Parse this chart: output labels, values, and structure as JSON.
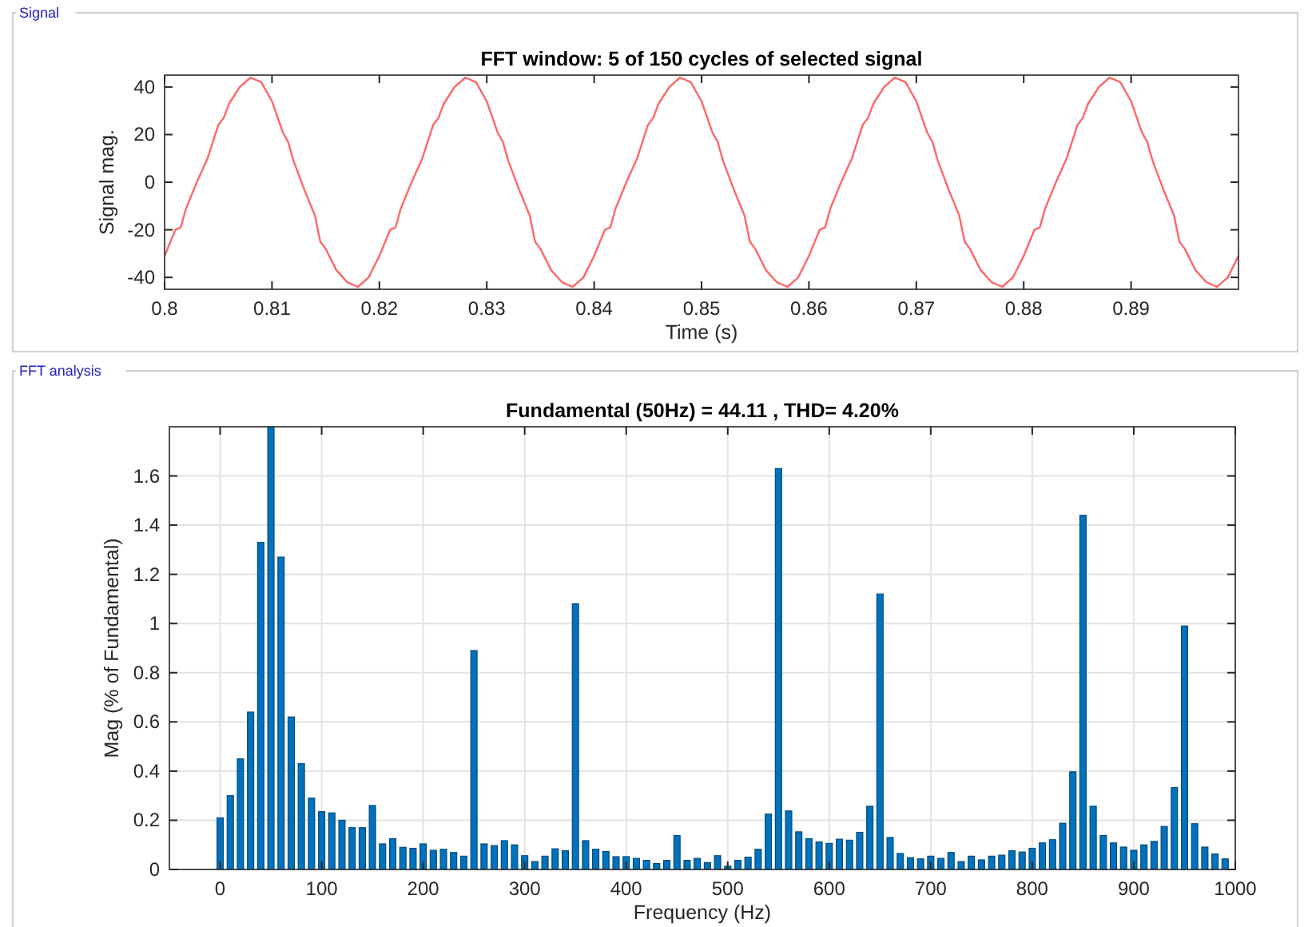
{
  "chart_data": [
    {
      "type": "line",
      "title": "FFT window: 5 of 150 cycles of selected signal",
      "xlabel": "Time (s)",
      "ylabel": "Signal mag.",
      "annotations": [
        "Signal"
      ],
      "color": "#ff6666",
      "x": [
        0.8,
        0.801,
        0.8015,
        0.802,
        0.803,
        0.804,
        0.8045,
        0.805,
        0.8055,
        0.806,
        0.807,
        0.808,
        0.809,
        0.81,
        0.811,
        0.8115,
        0.812,
        0.813,
        0.814,
        0.8145,
        0.815,
        0.816,
        0.817,
        0.818,
        0.819,
        0.82,
        0.821,
        0.8215,
        0.822,
        0.823,
        0.824,
        0.8245,
        0.825,
        0.8255,
        0.826,
        0.827,
        0.828,
        0.829,
        0.83,
        0.831,
        0.8315,
        0.832,
        0.833,
        0.834,
        0.8345,
        0.835,
        0.836,
        0.837,
        0.838,
        0.839,
        0.84,
        0.841,
        0.8415,
        0.842,
        0.843,
        0.844,
        0.8445,
        0.845,
        0.8455,
        0.846,
        0.847,
        0.848,
        0.849,
        0.85,
        0.851,
        0.8515,
        0.852,
        0.853,
        0.854,
        0.8545,
        0.855,
        0.856,
        0.857,
        0.858,
        0.859,
        0.86,
        0.861,
        0.8615,
        0.862,
        0.863,
        0.864,
        0.8645,
        0.865,
        0.8655,
        0.866,
        0.867,
        0.868,
        0.869,
        0.87,
        0.871,
        0.8715,
        0.872,
        0.873,
        0.874,
        0.8745,
        0.875,
        0.876,
        0.877,
        0.878,
        0.879,
        0.88,
        0.881,
        0.8815,
        0.882,
        0.883,
        0.884,
        0.8845,
        0.885,
        0.8855,
        0.886,
        0.887,
        0.888,
        0.889,
        0.89,
        0.891,
        0.8915,
        0.892,
        0.893,
        0.894,
        0.8945,
        0.895,
        0.896,
        0.897,
        0.898,
        0.899,
        0.9
      ],
      "values": [
        -31,
        -20,
        -19,
        -11,
        0,
        10,
        17,
        24,
        27,
        33,
        40,
        44,
        42,
        34,
        21,
        17,
        9,
        -3,
        -14,
        -25,
        -28,
        -37,
        -42,
        -44,
        -40,
        -31,
        -20,
        -19,
        -11,
        0,
        10,
        17,
        24,
        27,
        33,
        40,
        44,
        42,
        34,
        21,
        17,
        9,
        -3,
        -14,
        -25,
        -28,
        -37,
        -42,
        -44,
        -40,
        -31,
        -20,
        -19,
        -11,
        0,
        10,
        17,
        24,
        27,
        33,
        40,
        44,
        42,
        34,
        21,
        17,
        9,
        -3,
        -14,
        -25,
        -28,
        -37,
        -42,
        -44,
        -40,
        -31,
        -20,
        -19,
        -11,
        0,
        10,
        17,
        24,
        27,
        33,
        40,
        44,
        42,
        34,
        21,
        17,
        9,
        -3,
        -14,
        -25,
        -28,
        -37,
        -42,
        -44,
        -40,
        -31,
        -20,
        -19,
        -11,
        0,
        10,
        17,
        24,
        27,
        33,
        40,
        44,
        42,
        34,
        21,
        17,
        9,
        -3,
        -14,
        -25,
        -28,
        -37,
        -42,
        -44,
        -40,
        -31
      ],
      "xlim": [
        0.8,
        0.9
      ],
      "xticks": [
        0.8,
        0.81,
        0.82,
        0.83,
        0.84,
        0.85,
        0.86,
        0.87,
        0.88,
        0.89
      ],
      "ylim": [
        -45,
        45
      ],
      "yticks": [
        -40,
        -20,
        0,
        20,
        40
      ],
      "line_style": "solid"
    },
    {
      "type": "bar",
      "title": "Fundamental (50Hz) = 44.11 , THD= 4.20%",
      "xlabel": "Frequency (Hz)",
      "ylabel": "Mag (% of Fundamental)",
      "annotations": [
        "FFT analysis"
      ],
      "color": "#0072bd",
      "x": [
        0,
        10,
        20,
        30,
        40,
        50,
        60,
        70,
        80,
        90,
        100,
        110,
        120,
        130,
        140,
        150,
        160,
        170,
        180,
        190,
        200,
        210,
        220,
        230,
        240,
        250,
        260,
        270,
        280,
        290,
        300,
        310,
        320,
        330,
        340,
        350,
        360,
        370,
        380,
        390,
        400,
        410,
        420,
        430,
        440,
        450,
        460,
        470,
        480,
        490,
        500,
        510,
        520,
        530,
        540,
        550,
        560,
        570,
        580,
        590,
        600,
        610,
        620,
        630,
        640,
        650,
        660,
        670,
        680,
        690,
        700,
        710,
        720,
        730,
        740,
        750,
        760,
        770,
        780,
        790,
        800,
        810,
        820,
        830,
        840,
        850,
        860,
        870,
        880,
        890,
        900,
        910,
        920,
        930,
        940,
        950,
        960,
        970,
        980,
        990
      ],
      "values": [
        0.21,
        0.3,
        0.45,
        0.64,
        1.33,
        1.8,
        1.27,
        0.62,
        0.43,
        0.29,
        0.235,
        0.23,
        0.2,
        0.17,
        0.17,
        0.26,
        0.104,
        0.125,
        0.09,
        0.086,
        0.104,
        0.078,
        0.082,
        0.069,
        0.054,
        0.89,
        0.104,
        0.097,
        0.117,
        0.1,
        0.056,
        0.032,
        0.054,
        0.084,
        0.076,
        1.08,
        0.117,
        0.082,
        0.073,
        0.052,
        0.052,
        0.045,
        0.037,
        0.024,
        0.037,
        0.138,
        0.037,
        0.045,
        0.028,
        0.056,
        0.013,
        0.037,
        0.05,
        0.082,
        0.225,
        1.63,
        0.238,
        0.153,
        0.125,
        0.112,
        0.106,
        0.123,
        0.119,
        0.151,
        0.257,
        1.12,
        0.13,
        0.065,
        0.048,
        0.043,
        0.054,
        0.045,
        0.069,
        0.032,
        0.054,
        0.039,
        0.054,
        0.058,
        0.076,
        0.071,
        0.086,
        0.108,
        0.121,
        0.188,
        0.397,
        1.44,
        0.257,
        0.138,
        0.108,
        0.091,
        0.078,
        0.1,
        0.114,
        0.175,
        0.333,
        0.99,
        0.186,
        0.091,
        0.063,
        0.043
      ],
      "xlim": [
        -50,
        1000
      ],
      "xticks": [
        0,
        100,
        200,
        300,
        400,
        500,
        600,
        700,
        800,
        900,
        1000
      ],
      "ylim": [
        0,
        1.8
      ],
      "yticks": [
        0,
        0.2,
        0.4,
        0.6,
        0.8,
        1,
        1.2,
        1.4,
        1.6
      ],
      "grid": true
    }
  ]
}
